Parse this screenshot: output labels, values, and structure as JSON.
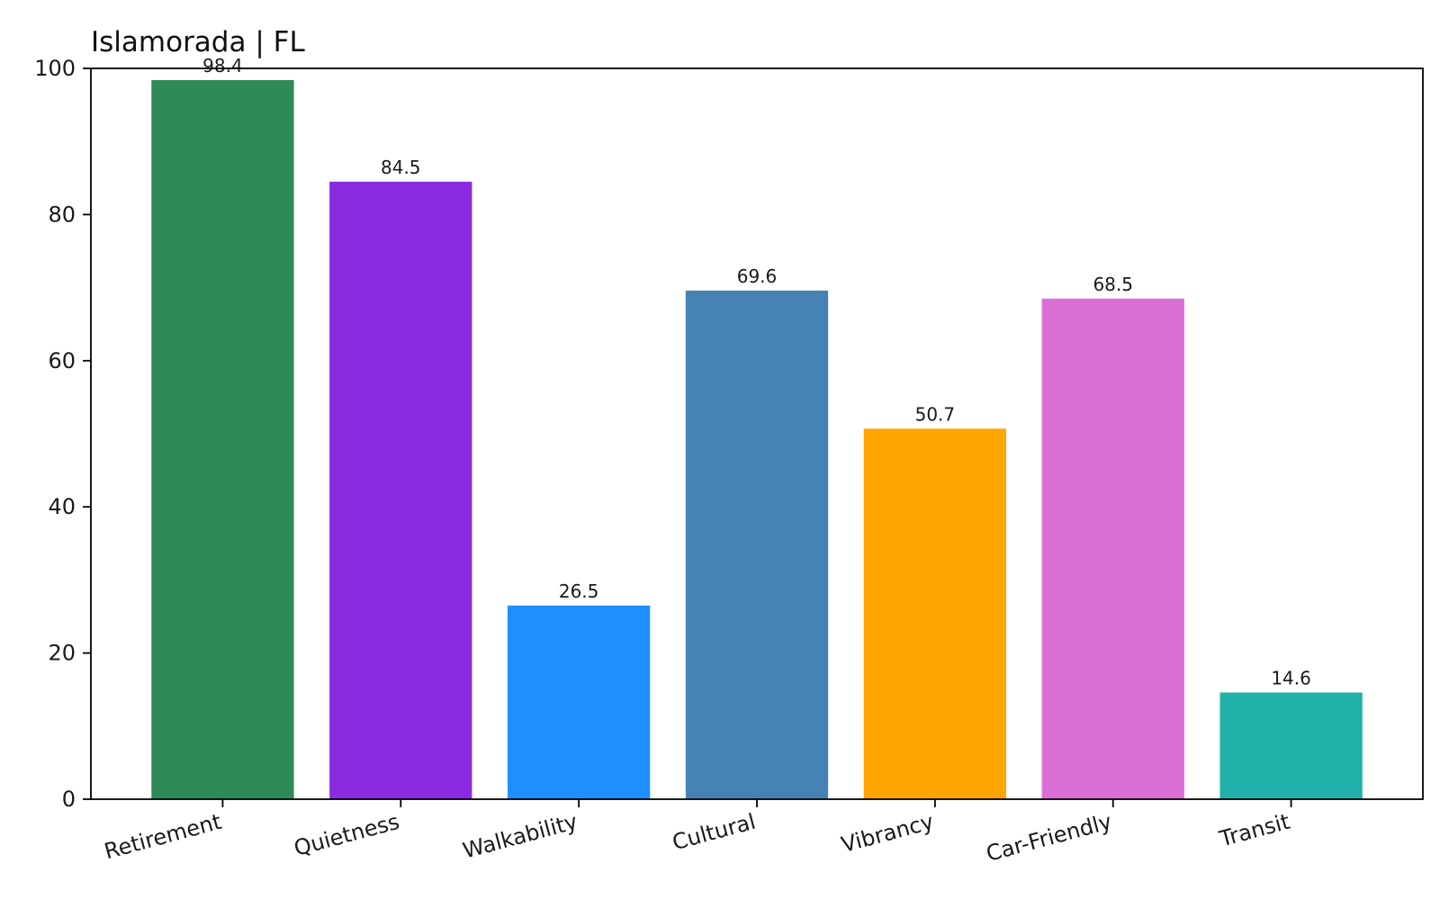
{
  "chart_data": {
    "type": "bar",
    "title": "Islamorada | FL",
    "xlabel": "",
    "ylabel": "",
    "categories": [
      "Retirement",
      "Quietness",
      "Walkability",
      "Cultural",
      "Vibrancy",
      "Car-Friendly",
      "Transit"
    ],
    "values": [
      98.4,
      84.5,
      26.5,
      69.6,
      50.7,
      68.5,
      14.6
    ],
    "data_labels": [
      "98.4",
      "84.5",
      "26.5",
      "69.6",
      "50.7",
      "68.5",
      "14.6"
    ],
    "colors": [
      "#2e8b57",
      "#8a2be2",
      "#1e90ff",
      "#4682b4",
      "#ffa500",
      "#da70d6",
      "#20b2aa"
    ],
    "ylim": [
      0,
      100
    ],
    "yticks": [
      0,
      20,
      40,
      60,
      80,
      100
    ],
    "grid": false,
    "legend": "none",
    "xtick_rotation": "slanted"
  }
}
